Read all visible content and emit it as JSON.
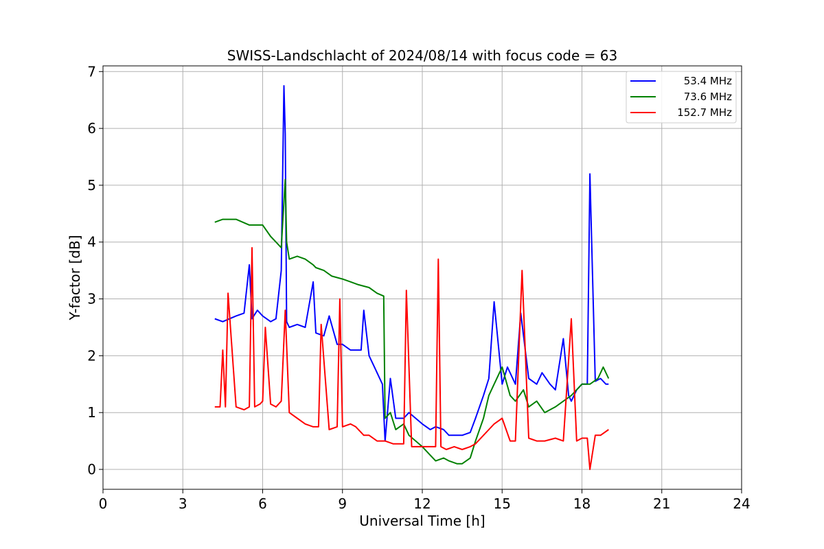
{
  "chart_data": {
    "type": "line",
    "title": "SWISS-Landschlacht of 2024/08/14 with focus code = 63",
    "xlabel": "Universal Time [h]",
    "ylabel": "Y-factor [dB]",
    "xlim": [
      0,
      24
    ],
    "ylim": [
      -0.35,
      7.1
    ],
    "xticks": [
      0,
      3,
      6,
      9,
      12,
      15,
      18,
      21,
      24
    ],
    "yticks": [
      0,
      1,
      2,
      3,
      4,
      5,
      6,
      7
    ],
    "grid": true,
    "legend_position": "upper right",
    "series": [
      {
        "name": "53.4 MHz",
        "color": "#0000ff",
        "x": [
          4.2,
          4.5,
          5.0,
          5.3,
          5.5,
          5.6,
          5.8,
          6.0,
          6.3,
          6.5,
          6.7,
          6.8,
          6.85,
          6.9,
          7.0,
          7.3,
          7.6,
          7.9,
          8.0,
          8.3,
          8.5,
          8.8,
          9.0,
          9.3,
          9.7,
          9.8,
          10.0,
          10.2,
          10.5,
          10.6,
          10.8,
          11.0,
          11.3,
          11.5,
          12.0,
          12.3,
          12.5,
          12.8,
          13.0,
          13.5,
          13.8,
          14.0,
          14.3,
          14.5,
          14.7,
          15.0,
          15.2,
          15.5,
          15.7,
          16.0,
          16.3,
          16.5,
          16.8,
          17.0,
          17.3,
          17.5,
          17.6,
          17.8,
          18.0,
          18.2,
          18.3,
          18.5,
          18.7,
          18.9,
          19.0
        ],
        "y": [
          2.65,
          2.6,
          2.7,
          2.75,
          3.6,
          2.65,
          2.8,
          2.7,
          2.6,
          2.65,
          3.5,
          6.75,
          5.9,
          2.6,
          2.5,
          2.55,
          2.5,
          3.3,
          2.4,
          2.35,
          2.7,
          2.2,
          2.2,
          2.1,
          2.1,
          2.8,
          2.0,
          1.8,
          1.5,
          0.5,
          1.6,
          0.9,
          0.9,
          1.0,
          0.8,
          0.7,
          0.75,
          0.7,
          0.6,
          0.6,
          0.65,
          0.9,
          1.3,
          1.6,
          2.95,
          1.5,
          1.8,
          1.5,
          2.75,
          1.6,
          1.5,
          1.7,
          1.5,
          1.4,
          2.3,
          1.3,
          1.2,
          1.4,
          1.5,
          1.5,
          5.2,
          1.55,
          1.6,
          1.5,
          1.5
        ]
      },
      {
        "name": "73.6 MHz",
        "color": "#008000",
        "x": [
          4.2,
          4.5,
          5.0,
          5.5,
          6.0,
          6.3,
          6.5,
          6.7,
          6.85,
          6.9,
          7.0,
          7.3,
          7.6,
          7.9,
          8.0,
          8.3,
          8.6,
          9.0,
          9.3,
          9.6,
          10.0,
          10.3,
          10.55,
          10.6,
          10.8,
          11.0,
          11.3,
          11.5,
          12.0,
          12.3,
          12.5,
          12.8,
          13.0,
          13.3,
          13.5,
          13.8,
          14.0,
          14.3,
          14.5,
          14.7,
          15.0,
          15.3,
          15.5,
          15.8,
          16.0,
          16.3,
          16.6,
          17.0,
          17.3,
          17.6,
          18.0,
          18.3,
          18.6,
          18.8,
          19.0
        ],
        "y": [
          4.35,
          4.4,
          4.4,
          4.3,
          4.3,
          4.1,
          4.0,
          3.9,
          5.1,
          4.0,
          3.7,
          3.75,
          3.7,
          3.6,
          3.55,
          3.5,
          3.4,
          3.35,
          3.3,
          3.25,
          3.2,
          3.1,
          3.05,
          0.9,
          1.0,
          0.7,
          0.8,
          0.6,
          0.4,
          0.25,
          0.15,
          0.2,
          0.15,
          0.1,
          0.1,
          0.2,
          0.5,
          0.9,
          1.3,
          1.5,
          1.8,
          1.3,
          1.2,
          1.4,
          1.1,
          1.2,
          1.0,
          1.1,
          1.2,
          1.3,
          1.5,
          1.5,
          1.6,
          1.8,
          1.6
        ]
      },
      {
        "name": "152.7 MHz",
        "color": "#ff0000",
        "x": [
          4.2,
          4.4,
          4.5,
          4.6,
          4.7,
          5.0,
          5.3,
          5.5,
          5.6,
          5.7,
          5.9,
          6.0,
          6.1,
          6.3,
          6.5,
          6.7,
          6.85,
          7.0,
          7.3,
          7.6,
          7.9,
          8.1,
          8.2,
          8.5,
          8.8,
          8.9,
          9.0,
          9.3,
          9.5,
          9.8,
          10.0,
          10.3,
          10.6,
          10.9,
          11.3,
          11.4,
          11.6,
          12.0,
          12.3,
          12.5,
          12.6,
          12.7,
          12.9,
          13.2,
          13.5,
          13.8,
          14.0,
          14.3,
          14.5,
          14.7,
          15.0,
          15.3,
          15.5,
          15.75,
          16.0,
          16.3,
          16.6,
          17.0,
          17.3,
          17.6,
          17.8,
          18.0,
          18.2,
          18.3,
          18.5,
          18.7,
          19.0
        ],
        "y": [
          1.1,
          1.1,
          2.1,
          1.1,
          3.1,
          1.1,
          1.05,
          1.1,
          3.9,
          1.1,
          1.15,
          1.2,
          2.5,
          1.15,
          1.1,
          1.2,
          2.8,
          1.0,
          0.9,
          0.8,
          0.75,
          0.75,
          2.55,
          0.7,
          0.75,
          3.0,
          0.75,
          0.8,
          0.75,
          0.6,
          0.6,
          0.5,
          0.5,
          0.45,
          0.45,
          3.15,
          0.4,
          0.4,
          0.4,
          0.4,
          3.7,
          0.4,
          0.35,
          0.4,
          0.35,
          0.4,
          0.45,
          0.6,
          0.7,
          0.8,
          0.9,
          0.5,
          0.5,
          3.5,
          0.55,
          0.5,
          0.5,
          0.55,
          0.5,
          2.65,
          0.5,
          0.55,
          0.55,
          0.0,
          0.6,
          0.6,
          0.7
        ]
      }
    ]
  }
}
